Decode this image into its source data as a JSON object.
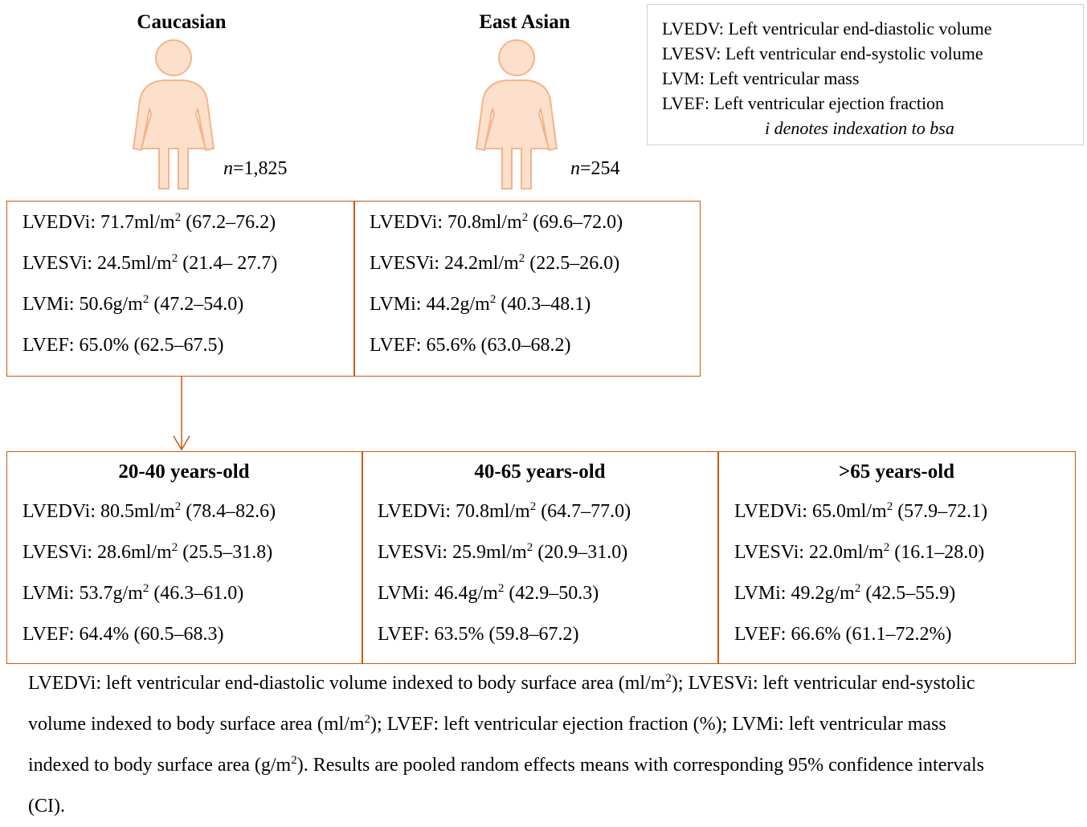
{
  "legend": {
    "lines": [
      "LVEDV: Left ventricular end-diastolic volume",
      "LVESV: Left ventricular end-systolic volume",
      "LVM: Left ventricular mass",
      "LVEF: Left ventricular ejection fraction"
    ],
    "note": "i denotes indexation to bsa"
  },
  "groups": [
    {
      "title": "Caucasian",
      "n_symbol": "n",
      "n_value": "=1,825",
      "rows": [
        {
          "pre": "LVEDVi: 71.7ml/m",
          "sup": "2",
          "post": " (67.2–76.2)"
        },
        {
          "pre": "LVESVi: 24.5ml/m",
          "sup": "2",
          "post": " (21.4– 27.7)"
        },
        {
          "pre": "LVMi: 50.6g/m",
          "sup": "2",
          "post": " (47.2–54.0)"
        },
        {
          "pre": "LVEF: 65.0% (62.5–67.5)"
        }
      ]
    },
    {
      "title": "East Asian",
      "n_symbol": "n",
      "n_value": "=254",
      "rows": [
        {
          "pre": "LVEDVi: 70.8ml/m",
          "sup": "2",
          "post": " (69.6–72.0)"
        },
        {
          "pre": "LVESVi: 24.2ml/m",
          "sup": "2",
          "post": " (22.5–26.0)"
        },
        {
          "pre": "LVMi: 44.2g/m",
          "sup": "2",
          "post": " (40.3–48.1)"
        },
        {
          "pre": "LVEF: 65.6% (63.0–68.2)"
        }
      ]
    }
  ],
  "age_groups": [
    {
      "title": "20-40 years-old",
      "rows": [
        {
          "pre": "LVEDVi: 80.5ml/m",
          "sup": "2",
          "post": " (78.4–82.6)"
        },
        {
          "pre": "LVESVi: 28.6ml/m",
          "sup": "2",
          "post": " (25.5–31.8)"
        },
        {
          "pre": "LVMi: 53.7g/m",
          "sup": "2",
          "post": " (46.3–61.0)"
        },
        {
          "pre": "LVEF: 64.4% (60.5–68.3)"
        }
      ]
    },
    {
      "title": "40-65 years-old",
      "rows": [
        {
          "pre": "LVEDVi: 70.8ml/m",
          "sup": "2",
          "post": " (64.7–77.0)"
        },
        {
          "pre": "LVESVi: 25.9ml/m",
          "sup": "2",
          "post": " (20.9–31.0)"
        },
        {
          "pre": "LVMi: 46.4g/m",
          "sup": "2",
          "post": " (42.9–50.3)"
        },
        {
          "pre": "LVEF: 63.5% (59.8–67.2)"
        }
      ]
    },
    {
      "title": ">65 years-old",
      "rows": [
        {
          "pre": "LVEDVi: 65.0ml/m",
          "sup": "2",
          "post": " (57.9–72.1)"
        },
        {
          "pre": "LVESVi: 22.0ml/m",
          "sup": "2",
          "post": " (16.1–28.0)"
        },
        {
          "pre": "LVMi: 49.2g/m",
          "sup": "2",
          "post": " (42.5–55.9)"
        },
        {
          "pre": "LVEF: 66.6% (61.1–72.2%)"
        }
      ]
    }
  ],
  "footnote": [
    "LVEDVi: left ventricular end-diastolic volume indexed to body surface area (ml/m",
    "2",
    "); LVESVi: left ventricular end-systolic volume indexed to body surface area (ml/m",
    "2",
    "); LVEF: left ventricular ejection fraction (%); LVMi: left ventricular mass indexed to body surface area (g/m",
    "2",
    "). Results are pooled random effects means with corresponding 95% confidence intervals (CI)."
  ]
}
